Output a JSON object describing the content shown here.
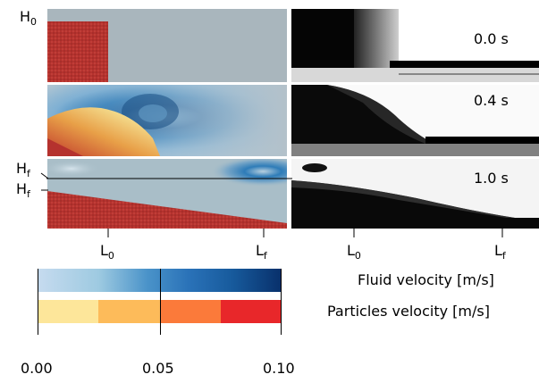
{
  "left_labels": {
    "h0": {
      "main": "H",
      "sub": "0"
    },
    "hf_upper": {
      "main": "H",
      "sub": "f"
    },
    "hf_lower": {
      "main": "H",
      "sub": "f"
    }
  },
  "times": [
    "0.0 s",
    "0.4 s",
    "1.0 s"
  ],
  "x_labels": {
    "sim_l0": {
      "main": "L",
      "sub": "0"
    },
    "sim_lf": {
      "main": "L",
      "sub": "f"
    },
    "exp_l0": {
      "main": "L",
      "sub": "0"
    },
    "exp_lf": {
      "main": "L",
      "sub": "f"
    }
  },
  "colorbar": {
    "fluid_label": "Fluid velocity [m/s]",
    "particles_label": "Particles velocity [m/s]",
    "ticks": [
      "0.00",
      "0.05",
      "0.10"
    ]
  },
  "colors": {
    "particles": "#b5322e",
    "fluid_still": "#a9b6bd",
    "fluid_gradient": [
      "#c6dbef",
      "#9ecae1",
      "#6baed6",
      "#4292c6",
      "#2171b5",
      "#08306b"
    ],
    "particle_gradient": [
      "#fde69a",
      "#fdbb5a",
      "#fb7a3a",
      "#e8272a"
    ]
  }
}
